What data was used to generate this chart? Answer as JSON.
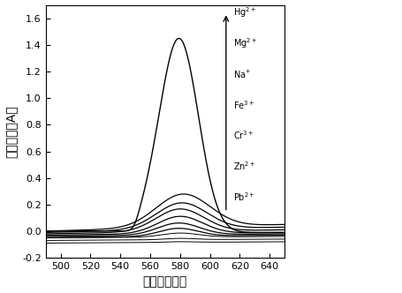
{
  "x_min": 490,
  "x_max": 650,
  "y_min": -0.2,
  "y_max": 1.7,
  "xlabel": "波长（纳米）",
  "ylabel": "吸光强度（A）",
  "xticks": [
    500,
    520,
    540,
    560,
    580,
    600,
    620,
    640
  ],
  "yticks": [
    -0.2,
    0.0,
    0.2,
    0.4,
    0.6,
    0.8,
    1.0,
    1.2,
    1.4,
    1.6
  ],
  "legend_labels": [
    "Hg$^{2+}$",
    "Mg$^{2+}$",
    "Na$^{+}$",
    "Fe$^{3+}$",
    "Cr$^{3+}$",
    "Zn$^{2+}$",
    "Pb$^{2+}$"
  ],
  "background_color": "#ffffff",
  "line_color": "#000000"
}
